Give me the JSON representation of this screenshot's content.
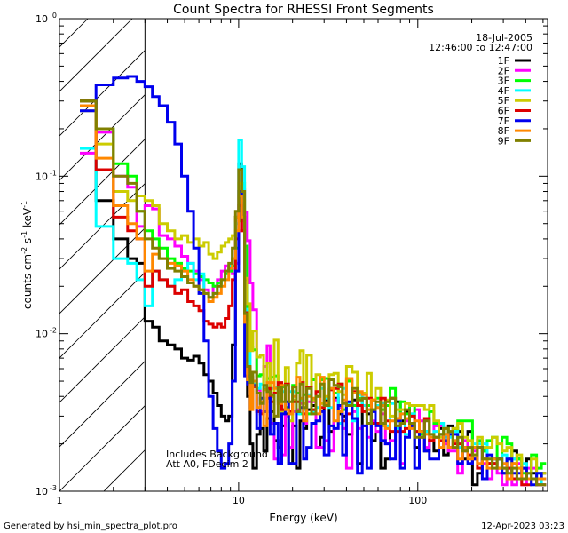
{
  "chart_data": {
    "type": "line",
    "title": "Count Spectra for RHESSI Front Segments",
    "xlabel": "Energy (keV)",
    "ylabel_main": "counts cm",
    "ylabel_exp1": "-2",
    "ylabel_mid": " s",
    "ylabel_exp2": "-1",
    "ylabel_end": " keV",
    "ylabel_exp3": "-1",
    "x_scale": "log",
    "y_scale": "log",
    "xlim": [
      1,
      530
    ],
    "ylim": [
      0.001,
      1
    ],
    "x_ticks": [
      {
        "value": 1,
        "label": "1"
      },
      {
        "value": 10,
        "label": "10"
      },
      {
        "value": 100,
        "label": "100"
      }
    ],
    "y_ticks": [
      {
        "value": 1,
        "base": "10",
        "exp": "0"
      },
      {
        "value": 0.1,
        "base": "10",
        "exp": "-1"
      },
      {
        "value": 0.01,
        "base": "10",
        "exp": "-2"
      },
      {
        "value": 0.001,
        "base": "10",
        "exp": "-3"
      }
    ],
    "hatch_region_max_kev": 3,
    "annotations": {
      "date": "18-Jul-2005",
      "time_range": "12:46:00 to 12:47:00",
      "background_note": "Includes Background",
      "atten_note": "Att A0, FDecim 2"
    },
    "footer_left": "Generated by hsi_min_spectra_plot.pro",
    "footer_right": "12-Apr-2023 03:23",
    "energy_edges": [
      1.3,
      1.6,
      2.0,
      2.4,
      2.7,
      3.0,
      3.3,
      3.6,
      4.0,
      4.4,
      4.8,
      5.2,
      5.6,
      6.0,
      6.4,
      6.8,
      7.2,
      7.6,
      8.0,
      8.4,
      8.8,
      9.2,
      9.6,
      10.0,
      10.4,
      10.8,
      11.2,
      11.6,
      12.0,
      12.6,
      13.2,
      13.8,
      14.4,
      15.0,
      15.8,
      16.6,
      17.4,
      18.2,
      19.0,
      20.0,
      21.0,
      22.0,
      23.0,
      24.0,
      25.5,
      27.0,
      28.5,
      30.0,
      32.0,
      34.0,
      36.0,
      38.0,
      40.0,
      43.0,
      46.0,
      49.0,
      52.0,
      55.0,
      58.0,
      62.0,
      66.0,
      70.0,
      75.0,
      80.0,
      85.0,
      90.0,
      96.0,
      102.0,
      109.0,
      116.0,
      123.0,
      131.0,
      139.0,
      148.0,
      157.0,
      167.0,
      178.0,
      190.0,
      202.0,
      215.0,
      229.0,
      244.0,
      260.0,
      277.0,
      295.0,
      314.0,
      335.0,
      357.0,
      380.0,
      405.0,
      430.0,
      460.0,
      490.0,
      520.0
    ],
    "series": [
      {
        "name": "1F",
        "color": "#000000",
        "values": [
          0.3,
          0.07,
          0.04,
          0.03,
          0.028,
          0.012,
          0.011,
          0.009,
          0.0085,
          0.008,
          0.007,
          0.0068,
          0.0072,
          0.0065,
          0.0055,
          0.005,
          0.0042,
          0.0035,
          0.003,
          0.0028,
          0.003,
          0.0085,
          0.055,
          0.12,
          0.06,
          0.022,
          0.004,
          0.002,
          0.0014,
          0.0023,
          0.0025,
          0.0018,
          0.0029,
          0.0032,
          0.0021,
          0.0019,
          0.0026,
          0.0031,
          0.0015,
          0.0026,
          0.0014,
          0.0028,
          0.0025,
          0.0033,
          0.0035,
          0.0019,
          0.0022,
          0.0038,
          0.0024,
          0.0039,
          0.0031,
          0.003,
          0.0023,
          0.0038,
          0.0015,
          0.0039,
          0.0031,
          0.0021,
          0.0027,
          0.0014,
          0.0016,
          0.0039,
          0.0037,
          0.0028,
          0.0032,
          0.0026,
          0.0019,
          0.0024,
          0.0018,
          0.0021,
          0.0018,
          0.0025,
          0.0017,
          0.0026,
          0.0025,
          0.0024,
          0.0016,
          0.0024,
          0.0011,
          0.0013,
          0.0018,
          0.0015,
          0.0015,
          0.0016,
          0.0013,
          0.0016,
          0.0018,
          0.0016,
          0.0014,
          0.0016,
          0.0013,
          0.0012,
          0.0013
        ]
      },
      {
        "name": "2F",
        "color": "#ff00ff",
        "values": [
          0.14,
          0.19,
          0.1,
          0.085,
          0.048,
          0.065,
          0.062,
          0.042,
          0.04,
          0.036,
          0.031,
          0.028,
          0.025,
          0.022,
          0.019,
          0.017,
          0.02,
          0.022,
          0.025,
          0.027,
          0.027,
          0.024,
          0.028,
          0.045,
          0.082,
          0.059,
          0.039,
          0.021,
          0.0142,
          0.0044,
          0.0032,
          0.0062,
          0.0084,
          0.0027,
          0.0016,
          0.0015,
          0.0017,
          0.003,
          0.0019,
          0.0032,
          0.0033,
          0.0036,
          0.0027,
          0.0037,
          0.0037,
          0.0019,
          0.0019,
          0.0021,
          0.0018,
          0.0038,
          0.0034,
          0.0025,
          0.0014,
          0.0032,
          0.0025,
          0.0026,
          0.0022,
          0.0028,
          0.0024,
          0.0031,
          0.002,
          0.0021,
          0.0029,
          0.0015,
          0.0028,
          0.0031,
          0.0033,
          0.0028,
          0.0019,
          0.0021,
          0.0026,
          0.0026,
          0.002,
          0.0018,
          0.0018,
          0.0013,
          0.0021,
          0.0019,
          0.0018,
          0.0021,
          0.0015,
          0.0012,
          0.0016,
          0.0013,
          0.0011,
          0.0014,
          0.0011,
          0.0015,
          0.0011,
          0.0014,
          0.0014,
          0.0011,
          0.0011
        ]
      },
      {
        "name": "3F",
        "color": "#00ff00",
        "values": [
          0.3,
          0.2,
          0.12,
          0.1,
          0.06,
          0.045,
          0.04,
          0.035,
          0.03,
          0.028,
          0.026,
          0.025,
          0.024,
          0.023,
          0.022,
          0.021,
          0.02,
          0.021,
          0.022,
          0.024,
          0.025,
          0.027,
          0.035,
          0.052,
          0.09,
          0.036,
          0.0089,
          0.0082,
          0.0079,
          0.0054,
          0.0055,
          0.0045,
          0.0052,
          0.0053,
          0.0054,
          0.0038,
          0.0046,
          0.0034,
          0.0031,
          0.0047,
          0.0042,
          0.0031,
          0.0041,
          0.0031,
          0.0051,
          0.004,
          0.0051,
          0.0052,
          0.0045,
          0.0042,
          0.0048,
          0.0033,
          0.005,
          0.0035,
          0.0039,
          0.0035,
          0.0035,
          0.0038,
          0.0039,
          0.0033,
          0.0035,
          0.0045,
          0.0028,
          0.0037,
          0.0031,
          0.0035,
          0.0024,
          0.0023,
          0.0024,
          0.0032,
          0.0027,
          0.0023,
          0.0025,
          0.0023,
          0.0021,
          0.0028,
          0.0028,
          0.0028,
          0.0019,
          0.0021,
          0.0018,
          0.0021,
          0.0022,
          0.0016,
          0.0022,
          0.002,
          0.0016,
          0.0016,
          0.0013,
          0.0013,
          0.0017,
          0.0014,
          0.0015
        ]
      },
      {
        "name": "4F",
        "color": "#00ffff",
        "values": [
          0.15,
          0.048,
          0.03,
          0.028,
          0.022,
          0.015,
          0.025,
          0.022,
          0.02,
          0.022,
          0.025,
          0.028,
          0.022,
          0.024,
          0.018,
          0.017,
          0.018,
          0.02,
          0.022,
          0.025,
          0.027,
          0.03,
          0.05,
          0.17,
          0.115,
          0.0139,
          0.0143,
          0.0049,
          0.0048,
          0.0045,
          0.0048,
          0.0046,
          0.0044,
          0.0045,
          0.0046,
          0.0037,
          0.0043,
          0.0047,
          0.0043,
          0.0043,
          0.0031,
          0.0038,
          0.0033,
          0.0041,
          0.0032,
          0.0034,
          0.0045,
          0.0039,
          0.0034,
          0.0045,
          0.0027,
          0.0045,
          0.0036,
          0.0028,
          0.0041,
          0.0035,
          0.0033,
          0.0033,
          0.0035,
          0.0036,
          0.0026,
          0.0036,
          0.0025,
          0.0031,
          0.0023,
          0.0031,
          0.0024,
          0.0024,
          0.0024,
          0.0023,
          0.0024,
          0.0027,
          0.0022,
          0.0022,
          0.0024,
          0.0019,
          0.0019,
          0.0017,
          0.002,
          0.002,
          0.002,
          0.0016,
          0.0016,
          0.0014,
          0.0017,
          0.0013,
          0.0016,
          0.0014,
          0.0015,
          0.0013,
          0.0012,
          0.0013,
          0.0011
        ]
      },
      {
        "name": "5F",
        "color": "#cccc00",
        "values": [
          0.26,
          0.16,
          0.08,
          0.07,
          0.075,
          0.07,
          0.065,
          0.05,
          0.045,
          0.04,
          0.042,
          0.038,
          0.04,
          0.036,
          0.038,
          0.032,
          0.03,
          0.033,
          0.036,
          0.038,
          0.04,
          0.042,
          0.055,
          0.09,
          0.07,
          0.0225,
          0.0155,
          0.0078,
          0.0104,
          0.0071,
          0.0073,
          0.0044,
          0.0065,
          0.004,
          0.0091,
          0.0046,
          0.0032,
          0.0061,
          0.0028,
          0.0038,
          0.0065,
          0.0078,
          0.0036,
          0.0073,
          0.0038,
          0.0055,
          0.0036,
          0.004,
          0.0055,
          0.0056,
          0.0043,
          0.0041,
          0.0062,
          0.0057,
          0.0042,
          0.0042,
          0.0056,
          0.0038,
          0.0045,
          0.0026,
          0.0038,
          0.003,
          0.0033,
          0.0033,
          0.0036,
          0.0035,
          0.0035,
          0.0035,
          0.0033,
          0.0035,
          0.0028,
          0.0022,
          0.0025,
          0.0024,
          0.0025,
          0.0027,
          0.0022,
          0.0021,
          0.0017,
          0.0022,
          0.0019,
          0.0019,
          0.0022,
          0.002,
          0.0018,
          0.0019,
          0.0015,
          0.0017,
          0.0014,
          0.0012,
          0.0016,
          0.0012,
          0.0013
        ]
      },
      {
        "name": "6F",
        "color": "#dd0000",
        "values": [
          0.3,
          0.11,
          0.055,
          0.045,
          0.04,
          0.02,
          0.025,
          0.022,
          0.02,
          0.018,
          0.019,
          0.016,
          0.015,
          0.014,
          0.012,
          0.0115,
          0.011,
          0.0115,
          0.011,
          0.0125,
          0.015,
          0.022,
          0.04,
          0.065,
          0.045,
          0.0136,
          0.0061,
          0.0053,
          0.0046,
          0.0032,
          0.0031,
          0.0032,
          0.0045,
          0.0037,
          0.0042,
          0.0049,
          0.0033,
          0.0048,
          0.0032,
          0.0037,
          0.0037,
          0.0049,
          0.0031,
          0.0046,
          0.0033,
          0.0043,
          0.0034,
          0.0035,
          0.0044,
          0.0045,
          0.0048,
          0.0028,
          0.0031,
          0.0043,
          0.0035,
          0.0032,
          0.0039,
          0.0027,
          0.0027,
          0.0039,
          0.0028,
          0.0024,
          0.0024,
          0.0024,
          0.0025,
          0.003,
          0.0024,
          0.0022,
          0.0029,
          0.0021,
          0.0022,
          0.0021,
          0.0023,
          0.0019,
          0.002,
          0.002,
          0.0019,
          0.0017,
          0.0016,
          0.0014,
          0.0016,
          0.0015,
          0.0015,
          0.0014,
          0.0014,
          0.0014,
          0.0012,
          0.0012,
          0.0011,
          0.0011,
          0.0012,
          0.0011,
          0.0011
        ]
      },
      {
        "name": "7F",
        "color": "#0000ee",
        "values": [
          0.26,
          0.38,
          0.42,
          0.43,
          0.4,
          0.37,
          0.32,
          0.28,
          0.22,
          0.16,
          0.1,
          0.06,
          0.035,
          0.018,
          0.009,
          0.004,
          0.0025,
          0.0018,
          0.0014,
          0.0015,
          0.002,
          0.005,
          0.025,
          0.08,
          0.055,
          0.0054,
          0.0048,
          0.0034,
          0.0047,
          0.0025,
          0.0039,
          0.0032,
          0.0039,
          0.0023,
          0.0027,
          0.0015,
          0.0031,
          0.0037,
          0.0015,
          0.0015,
          0.0032,
          0.0034,
          0.0016,
          0.0019,
          0.0027,
          0.0028,
          0.0032,
          0.0017,
          0.0026,
          0.0025,
          0.0035,
          0.0017,
          0.0037,
          0.0029,
          0.0013,
          0.0026,
          0.0014,
          0.0032,
          0.0026,
          0.0021,
          0.002,
          0.0016,
          0.0028,
          0.0014,
          0.0022,
          0.0026,
          0.0014,
          0.0024,
          0.0018,
          0.0016,
          0.0016,
          0.0023,
          0.0021,
          0.0023,
          0.0023,
          0.0015,
          0.0018,
          0.0015,
          0.0016,
          0.0019,
          0.0012,
          0.0017,
          0.0016,
          0.0016,
          0.0013,
          0.0016,
          0.0013,
          0.0013,
          0.0014,
          0.0012,
          0.0011,
          0.0013,
          0.0012
        ]
      },
      {
        "name": "8F",
        "color": "#ff8800",
        "values": [
          0.28,
          0.13,
          0.065,
          0.05,
          0.04,
          0.025,
          0.032,
          0.03,
          0.028,
          0.027,
          0.025,
          0.022,
          0.02,
          0.019,
          0.018,
          0.016,
          0.017,
          0.018,
          0.02,
          0.022,
          0.026,
          0.03,
          0.045,
          0.075,
          0.055,
          0.0118,
          0.0051,
          0.0033,
          0.005,
          0.0034,
          0.0037,
          0.0026,
          0.0049,
          0.0049,
          0.0045,
          0.0036,
          0.0047,
          0.0033,
          0.0031,
          0.004,
          0.0053,
          0.0039,
          0.0028,
          0.004,
          0.0039,
          0.0031,
          0.0053,
          0.0036,
          0.0045,
          0.0028,
          0.0032,
          0.0038,
          0.0052,
          0.0042,
          0.0043,
          0.0041,
          0.0033,
          0.0038,
          0.0034,
          0.0035,
          0.0025,
          0.0028,
          0.0029,
          0.0031,
          0.0029,
          0.0025,
          0.0028,
          0.0024,
          0.0023,
          0.0022,
          0.0022,
          0.0019,
          0.0023,
          0.0019,
          0.0021,
          0.0016,
          0.0019,
          0.0016,
          0.0019,
          0.0015,
          0.0016,
          0.0014,
          0.0016,
          0.0014,
          0.0015,
          0.0012,
          0.0015,
          0.0014,
          0.0012,
          0.0012,
          0.0012,
          0.0012,
          0.0012
        ]
      },
      {
        "name": "9F",
        "color": "#808000",
        "values": [
          0.3,
          0.2,
          0.1,
          0.09,
          0.06,
          0.04,
          0.035,
          0.03,
          0.026,
          0.025,
          0.023,
          0.021,
          0.02,
          0.019,
          0.018,
          0.017,
          0.018,
          0.02,
          0.022,
          0.025,
          0.028,
          0.035,
          0.06,
          0.11,
          0.08,
          0.0134,
          0.0062,
          0.0049,
          0.0057,
          0.0042,
          0.0036,
          0.0047,
          0.0043,
          0.0041,
          0.003,
          0.0046,
          0.0037,
          0.0047,
          0.0037,
          0.0046,
          0.0032,
          0.0048,
          0.0034,
          0.0045,
          0.0031,
          0.004,
          0.0048,
          0.0035,
          0.0051,
          0.0047,
          0.0046,
          0.0036,
          0.0035,
          0.0045,
          0.0038,
          0.0039,
          0.0027,
          0.0033,
          0.0037,
          0.0027,
          0.0037,
          0.0039,
          0.0026,
          0.0027,
          0.0033,
          0.0027,
          0.0022,
          0.0022,
          0.0028,
          0.0023,
          0.0022,
          0.0023,
          0.0025,
          0.0024,
          0.0019,
          0.0022,
          0.0018,
          0.0019,
          0.0017,
          0.0019,
          0.0016,
          0.0016,
          0.0014,
          0.0016,
          0.0014,
          0.0013,
          0.0014,
          0.0012,
          0.0012,
          0.0013,
          0.0012,
          0.0011,
          0.0011
        ]
      }
    ]
  }
}
